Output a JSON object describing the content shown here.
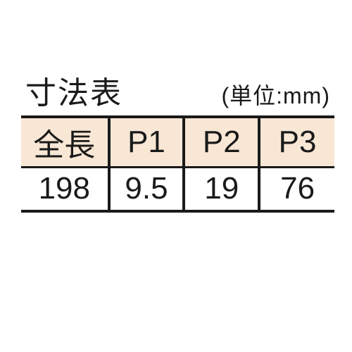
{
  "title": "寸法表",
  "unit_label": "(単位:mm)",
  "table": {
    "columns": [
      "全長",
      "P1",
      "P2",
      "P3"
    ],
    "rows": [
      [
        "198",
        "9.5",
        "19",
        "76"
      ]
    ],
    "header_bg": "#f9e7d5",
    "border_color": "#1a1a1a",
    "text_color": "#1a1a1a",
    "cell_fontsize": 44,
    "title_fontsize": 44,
    "unit_fontsize": 32
  }
}
